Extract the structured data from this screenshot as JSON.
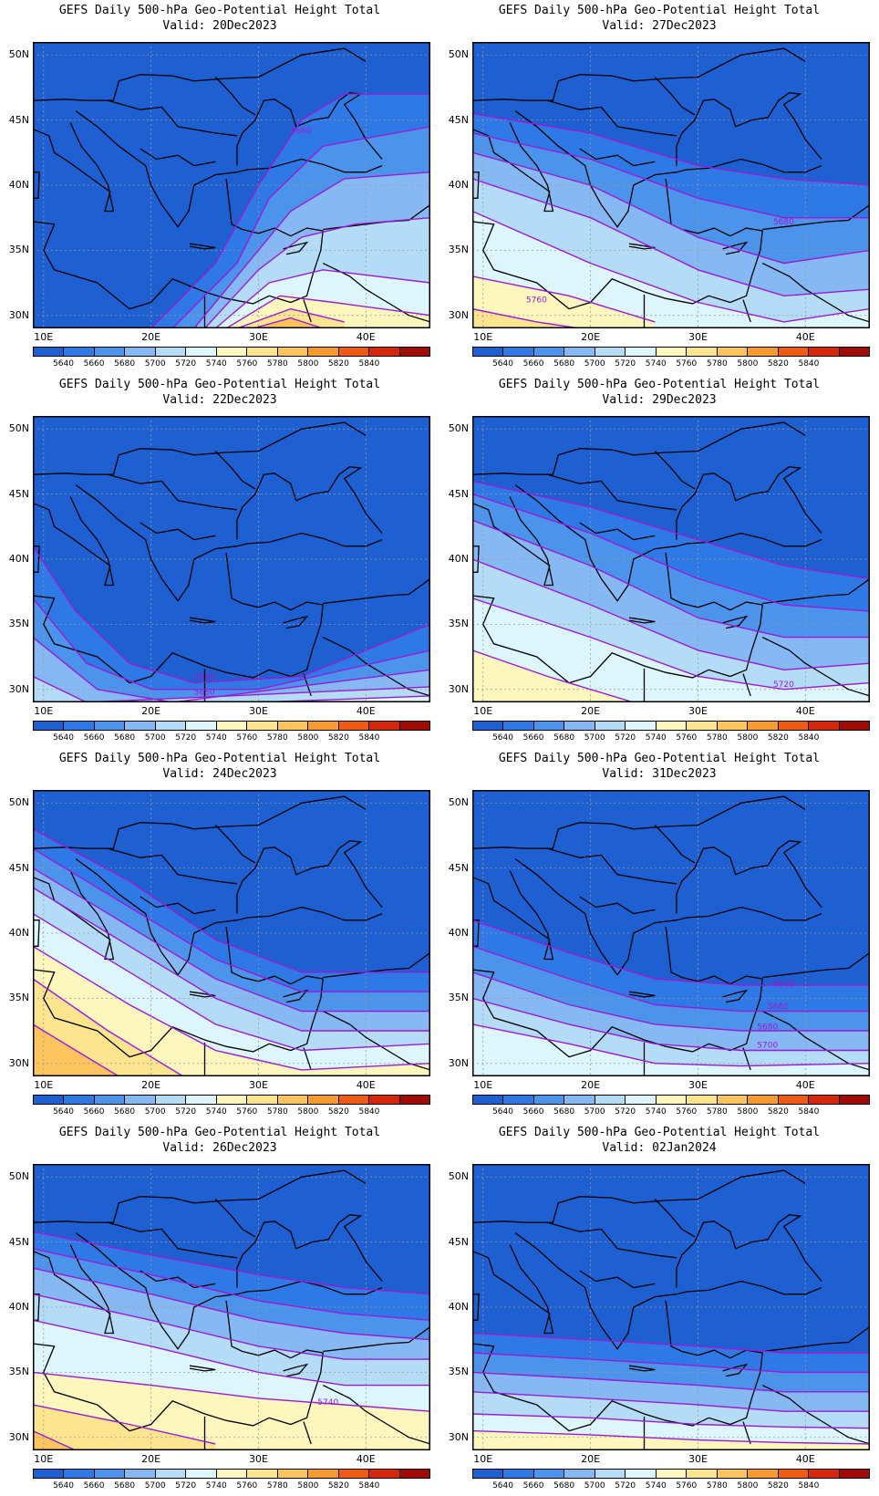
{
  "colors": [
    "#1e5fd1",
    "#2f79e6",
    "#4c93ec",
    "#86b8f4",
    "#b4dcf7",
    "#dcf6fb",
    "#fdf6bd",
    "#fde48f",
    "#fbc45c",
    "#f79a30",
    "#ef5a14",
    "#d5280b",
    "#a00b06"
  ],
  "colorbar_labels": [
    "5640",
    "5660",
    "5680",
    "5700",
    "5720",
    "5740",
    "5760",
    "5780",
    "5800",
    "5820",
    "5840"
  ],
  "lat_labels": [
    "50N",
    "45N",
    "40N",
    "35N",
    "30N"
  ],
  "lon_labels": [
    "10E",
    "20E",
    "30E",
    "40E"
  ],
  "panels": [
    {
      "title": "GEFS Daily 500-hPa Geo-Potential Height Total",
      "valid": "Valid: 20Dec2023",
      "contour_labels": [
        {
          "text": "5660",
          "lon": 33.0,
          "lat": 44.0
        }
      ],
      "chart_data": {
        "type": "heatmap",
        "variable": "500-hPa Geo-Potential Height",
        "levels": [
          5640,
          5660,
          5680,
          5700,
          5720,
          5740,
          5760,
          5780,
          5800,
          5820,
          5840
        ],
        "note_pattern": "ridge from south, peak ~5780 near 30E 29N"
      }
    },
    {
      "title": "GEFS Daily 500-hPa Geo-Potential Height Total",
      "valid": "Valid: 27Dec2023",
      "contour_labels": [
        {
          "text": "5680",
          "lon": 37.0,
          "lat": 37.0
        },
        {
          "text": "5760",
          "lon": 14.0,
          "lat": 31.0
        }
      ],
      "chart_data": {
        "type": "heatmap",
        "variable": "500-hPa Geo-Potential Height",
        "levels": [
          5640,
          5660,
          5680,
          5700,
          5720,
          5740,
          5760,
          5780,
          5800,
          5820,
          5840
        ]
      }
    },
    {
      "title": "GEFS Daily 500-hPa Geo-Potential Height Total",
      "valid": "Valid: 22Dec2023",
      "contour_labels": [
        {
          "text": "5640",
          "lon": 24.0,
          "lat": 30.8
        },
        {
          "text": "5660",
          "lon": 24.0,
          "lat": 29.6
        }
      ],
      "chart_data": {
        "type": "heatmap",
        "variable": "500-hPa Geo-Potential Height",
        "levels": [
          5640,
          5660,
          5680,
          5700,
          5720,
          5740,
          5760,
          5780,
          5800,
          5820,
          5840
        ]
      }
    },
    {
      "title": "GEFS Daily 500-hPa Geo-Potential Height Total",
      "valid": "Valid: 29Dec2023",
      "contour_labels": [
        {
          "text": "5720",
          "lon": 37.0,
          "lat": 30.2
        }
      ],
      "chart_data": {
        "type": "heatmap",
        "variable": "500-hPa Geo-Potential Height",
        "levels": [
          5640,
          5660,
          5680,
          5700,
          5720,
          5740,
          5760,
          5780,
          5800,
          5820,
          5840
        ]
      }
    },
    {
      "title": "GEFS Daily 500-hPa Geo-Potential Height Total",
      "valid": "Valid: 24Dec2023",
      "contour_labels": [],
      "chart_data": {
        "type": "heatmap",
        "variable": "500-hPa Geo-Potential Height",
        "levels": [
          5640,
          5660,
          5680,
          5700,
          5720,
          5740,
          5760,
          5780,
          5800,
          5820,
          5840
        ]
      }
    },
    {
      "title": "GEFS Daily 500-hPa Geo-Potential Height Total",
      "valid": "Valid: 31Dec2023",
      "contour_labels": [
        {
          "text": "5640",
          "lon": 37.0,
          "lat": 35.9
        },
        {
          "text": "5660",
          "lon": 36.5,
          "lat": 34.2
        },
        {
          "text": "5680",
          "lon": 35.5,
          "lat": 32.6
        },
        {
          "text": "5700",
          "lon": 35.5,
          "lat": 31.2
        }
      ],
      "chart_data": {
        "type": "heatmap",
        "variable": "500-hPa Geo-Potential Height",
        "levels": [
          5640,
          5660,
          5680,
          5700,
          5720,
          5740,
          5760,
          5780,
          5800,
          5820,
          5840
        ]
      }
    },
    {
      "title": "GEFS Daily 500-hPa Geo-Potential Height Total",
      "valid": "Valid: 26Dec2023",
      "contour_labels": [
        {
          "text": "5740",
          "lon": 35.5,
          "lat": 32.5
        }
      ],
      "chart_data": {
        "type": "heatmap",
        "variable": "500-hPa Geo-Potential Height",
        "levels": [
          5640,
          5660,
          5680,
          5700,
          5720,
          5740,
          5760,
          5780,
          5800,
          5820,
          5840
        ]
      }
    },
    {
      "title": "GEFS Daily 500-hPa Geo-Potential Height Total",
      "valid": "Valid: 02Jan2024",
      "contour_labels": [],
      "chart_data": {
        "type": "heatmap",
        "variable": "500-hPa Geo-Potential Height",
        "levels": [
          5640,
          5660,
          5680,
          5700,
          5720,
          5740,
          5760,
          5780,
          5800,
          5820,
          5840
        ]
      }
    }
  ],
  "chart_data": {
    "type": "heatmap",
    "xlim": [
      9,
      46
    ],
    "ylim": [
      29,
      51
    ],
    "grid": true,
    "legend": "bottom"
  }
}
